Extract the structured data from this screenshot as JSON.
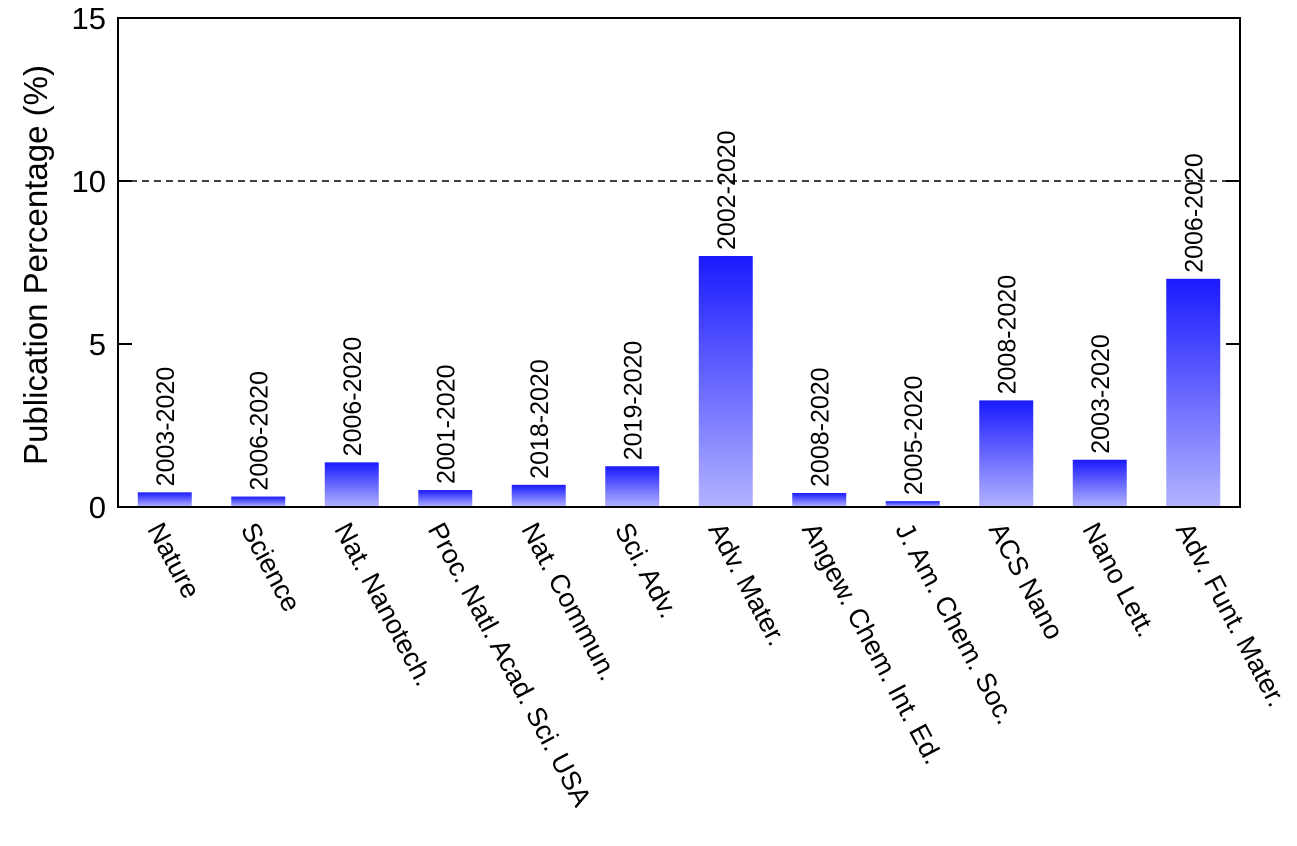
{
  "chart_data": {
    "type": "bar",
    "title": "",
    "xlabel": "",
    "ylabel": "Publication Percentage (%)",
    "ylim": [
      0,
      15
    ],
    "yticks": [
      0,
      5,
      10,
      15
    ],
    "reference_line": {
      "y": 10,
      "style": "dashed"
    },
    "grid": false,
    "categories": [
      "Nature",
      "Science",
      "Nat. Nanotech.",
      "Proc. Natl. Acad. Sci. USA",
      "Nat. Commun.",
      "Sci. Adv.",
      "Adv. Mater.",
      "Angew. Chem. Int. Ed.",
      "J. Am. Chem. Soc.",
      "ACS Nano",
      "Nano Lett.",
      "Adv. Funt. Mater."
    ],
    "values": [
      0.45,
      0.32,
      1.37,
      0.52,
      0.68,
      1.25,
      7.7,
      0.43,
      0.18,
      3.27,
      1.45,
      7.0
    ],
    "data_labels": [
      "2003-2020",
      "2006-2020",
      "2006-2020",
      "2001-2020",
      "2018-2020",
      "2019-2020",
      "2002-2020",
      "2008-2020",
      "2005-2020",
      "2008-2020",
      "2003-2020",
      "2006-2020"
    ],
    "colors": {
      "bar_top": "#1a1aff",
      "bar_bottom": "#b3b3ff",
      "axis": "#000000"
    }
  }
}
